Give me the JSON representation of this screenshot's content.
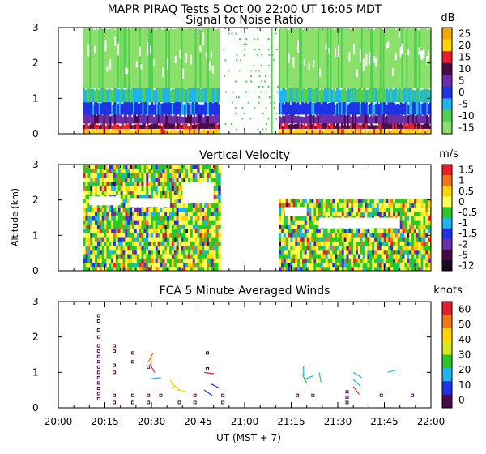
{
  "header": {
    "title": "MAPR PIRAQ Tests   5 Oct 00   22:00 UT   16:05   MDT"
  },
  "time_axis": {
    "ticks": [
      "20:00",
      "20:15",
      "20:30",
      "20:45",
      "21:00",
      "21:15",
      "21:30",
      "21:45",
      "22:00"
    ],
    "tick_minutes": [
      0,
      15,
      30,
      45,
      60,
      75,
      90,
      105,
      120
    ],
    "range_minutes": [
      0,
      120
    ],
    "label": "UT  (MST + 7)"
  },
  "chart_data": [
    {
      "type": "heatmap",
      "title": "Signal to Noise Ratio",
      "ylabel": "",
      "ylim": [
        0,
        3
      ],
      "y_ticks": [
        "0",
        "1",
        "2",
        "3"
      ],
      "y_tick_values": [
        0,
        1,
        2,
        3
      ],
      "colorbar": {
        "unit": "dB",
        "labels": [
          "25",
          "20",
          "15",
          "10",
          "5",
          "0",
          "-5",
          "-10",
          "-15"
        ],
        "colors": [
          "#f2a900",
          "#ffd400",
          "#e81e2a",
          "#4a0a4a",
          "#6b2ea6",
          "#1e32e6",
          "#1eb4ee",
          "#50d050",
          "#8ae06a"
        ]
      },
      "data_blocks": [
        {
          "t0": 8,
          "t1": 52,
          "coverage": "0-3 km"
        },
        {
          "t0": 71,
          "t1": 120,
          "coverage": "0-3 km"
        }
      ],
      "vertical_profile_dB": [
        {
          "z0": 0.0,
          "z1": 0.15,
          "value": 17
        },
        {
          "z0": 0.15,
          "z1": 0.3,
          "value": 9
        },
        {
          "z0": 0.3,
          "z1": 0.55,
          "value": 3
        },
        {
          "z0": 0.55,
          "z1": 0.9,
          "value": -3
        },
        {
          "z0": 0.9,
          "z1": 1.3,
          "value": -8
        },
        {
          "z0": 1.3,
          "z1": 3.0,
          "value": -13
        }
      ]
    },
    {
      "type": "heatmap",
      "title": "Vertical Velocity",
      "ylabel": "Altitude (km)",
      "ylim": [
        0,
        3
      ],
      "y_ticks": [
        "0",
        "1",
        "2",
        "3"
      ],
      "y_tick_values": [
        0,
        1,
        2,
        3
      ],
      "colorbar": {
        "unit": "m/s",
        "labels": [
          "1.5",
          "1",
          "0.5",
          "0",
          "-0.5",
          "-1",
          "-1.5",
          "-2",
          "-5",
          "-12"
        ],
        "colors": [
          "#e81e2a",
          "#f07818",
          "#ffd400",
          "#ffff55",
          "#28c828",
          "#1eb4ee",
          "#1e32e6",
          "#6b2ea6",
          "#4a0a4a",
          "#1a0a1a"
        ]
      },
      "data_blocks": [
        {
          "t0": 8,
          "t1": 52,
          "z0": 0.0,
          "z1": 2.9
        },
        {
          "t0": 71,
          "t1": 120,
          "z0": 0.0,
          "z1": 2.0
        }
      ]
    },
    {
      "type": "scatter",
      "title": "FCA 5 Minute Averaged Winds",
      "ylabel": "",
      "ylim": [
        0,
        3
      ],
      "y_ticks": [
        "0",
        "1",
        "2",
        "3"
      ],
      "y_tick_values": [
        0,
        1,
        2,
        3
      ],
      "colorbar": {
        "unit": "knots",
        "labels": [
          "60",
          "50",
          "40",
          "30",
          "20",
          "10",
          "0"
        ],
        "colors": [
          "#e81e2a",
          "#f07818",
          "#ffd400",
          "#d8e820",
          "#28c828",
          "#1eb4ee",
          "#1e32e6",
          "#4a0a4a"
        ]
      },
      "stations": [
        {
          "t": 13,
          "heights": [
            0.25,
            0.4,
            0.55,
            0.7,
            0.85,
            1.0,
            1.15,
            1.3,
            1.45,
            1.6,
            1.75,
            2.0,
            2.2,
            2.45,
            2.6
          ],
          "speed": 0
        },
        {
          "t": 18,
          "heights": [
            0.15,
            0.35,
            1.0,
            1.2,
            1.6,
            1.75
          ],
          "speed": 0
        },
        {
          "t": 24,
          "heights": [
            0.15,
            0.35,
            1.3,
            1.55
          ],
          "speed": 0
        },
        {
          "t": 29,
          "heights": [
            0.15,
            0.35,
            1.15
          ],
          "speed": 0
        },
        {
          "t": 33,
          "heights": [
            0.35
          ],
          "speed": 0
        },
        {
          "t": 39,
          "heights": [
            0.15
          ],
          "speed": 0
        },
        {
          "t": 44,
          "heights": [
            0.15,
            0.35
          ],
          "speed": 0
        },
        {
          "t": 48,
          "heights": [
            1.1,
            1.55
          ],
          "speed": 0
        },
        {
          "t": 53,
          "heights": [
            0.15,
            0.35
          ],
          "speed": 0
        },
        {
          "t": 77,
          "heights": [
            0.35
          ],
          "speed": 0
        },
        {
          "t": 82,
          "heights": [
            0.35
          ],
          "speed": 0
        },
        {
          "t": 93,
          "heights": [
            0.15,
            0.3,
            0.45
          ],
          "speed": 0
        },
        {
          "t": 104,
          "heights": [
            0.35
          ],
          "speed": 0
        },
        {
          "t": 114,
          "heights": [
            0.35
          ],
          "speed": 0
        }
      ],
      "barbs": [
        {
          "t": 29,
          "z": 1.3,
          "speed": 50
        },
        {
          "t": 30,
          "z": 1.22,
          "speed": 45
        },
        {
          "t": 31,
          "z": 1.0,
          "speed": 55
        },
        {
          "t": 33,
          "z": 0.85,
          "speed": 15
        },
        {
          "t": 36,
          "z": 0.8,
          "speed": 40
        },
        {
          "t": 37,
          "z": 0.65,
          "speed": 35
        },
        {
          "t": 38,
          "z": 0.5,
          "speed": 30
        },
        {
          "t": 47,
          "z": 1.0,
          "speed": 55
        },
        {
          "t": 47,
          "z": 0.5,
          "speed": 5
        },
        {
          "t": 52,
          "z": 0.55,
          "speed": 5
        },
        {
          "t": 79,
          "z": 0.9,
          "speed": 15
        },
        {
          "t": 80,
          "z": 0.7,
          "speed": 25
        },
        {
          "t": 82,
          "z": 0.9,
          "speed": 15
        },
        {
          "t": 84,
          "z": 1.0,
          "speed": 20
        },
        {
          "t": 95,
          "z": 1.0,
          "speed": 20
        },
        {
          "t": 95,
          "z": 0.8,
          "speed": 15
        },
        {
          "t": 95,
          "z": 0.6,
          "speed": 55
        },
        {
          "t": 106,
          "z": 1.0,
          "speed": 20
        }
      ]
    }
  ]
}
